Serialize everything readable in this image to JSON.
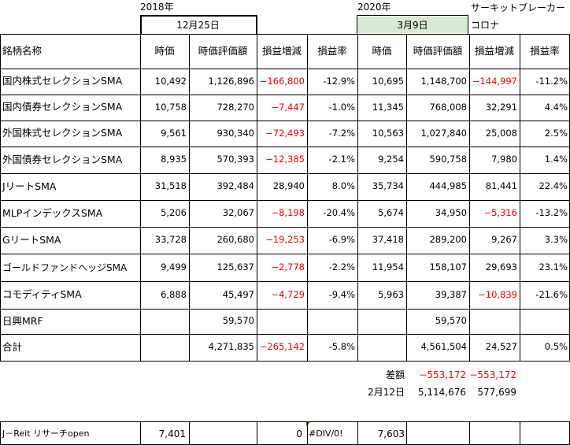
{
  "labels": {
    "year_2018": "2018年",
    "year_2020": "2020年",
    "circuit_breaker": "サーキットブレーカー",
    "corona": "コロナ",
    "date_dec25": "12月25日",
    "date_mar9": "3月9日"
  },
  "headers": [
    "銘柄名称",
    "時価",
    "時価評価額",
    "損益増減",
    "損益率",
    "時価",
    "時価評価額",
    "損益増減",
    "損益率"
  ],
  "rows": [
    {
      "name": "国内株式セレクションSMA",
      "p1": "10,492",
      "v1": "1,126,896",
      "g1": "−166,800",
      "r1": "-12.9%",
      "p2": "10,695",
      "v2": "1,148,700",
      "g2": "−144,997",
      "r2": "-11.2%"
    },
    {
      "name": "国内債券セレクションSMA",
      "p1": "10,758",
      "v1": "728,270",
      "g1": "−7,447",
      "r1": "-1.0%",
      "p2": "11,345",
      "v2": "768,008",
      "g2": "32,291",
      "r2": "4.4%"
    },
    {
      "name": "外国株式セレクションSMA",
      "p1": "9,561",
      "v1": "930,340",
      "g1": "−72,493",
      "r1": "-7.2%",
      "p2": "10,563",
      "v2": "1,027,840",
      "g2": "25,008",
      "r2": "2.5%"
    },
    {
      "name": "外国債券セレクションSMA",
      "p1": "8,935",
      "v1": "570,393",
      "g1": "−12,385",
      "r1": "-2.1%",
      "p2": "9,254",
      "v2": "590,758",
      "g2": "7,980",
      "r2": "1.4%"
    },
    {
      "name": "JリートSMA",
      "p1": "31,518",
      "v1": "392,484",
      "g1": "28,940",
      "r1": "8.0%",
      "p2": "35,734",
      "v2": "444,985",
      "g2": "81,441",
      "r2": "22.4%"
    },
    {
      "name": "MLPインデックスSMA",
      "p1": "5,206",
      "v1": "32,067",
      "g1": "−8,198",
      "r1": "-20.4%",
      "p2": "5,674",
      "v2": "34,950",
      "g2": "−5,316",
      "r2": "-13.2%"
    },
    {
      "name": "GリートSMA",
      "p1": "33,728",
      "v1": "260,680",
      "g1": "−19,253",
      "r1": "-6.9%",
      "p2": "37,418",
      "v2": "289,200",
      "g2": "9,267",
      "r2": "3.3%"
    },
    {
      "name": "ゴールドファンドヘッジSMA",
      "p1": "9,499",
      "v1": "125,637",
      "g1": "−2,778",
      "r1": "-2.2%",
      "p2": "11,954",
      "v2": "158,107",
      "g2": "29,693",
      "r2": "23.1%"
    },
    {
      "name": "コモディティSMA",
      "p1": "6,888",
      "v1": "45,497",
      "g1": "−4,729",
      "r1": "-9.4%",
      "p2": "5,963",
      "v2": "39,387",
      "g2": "−10,839",
      "r2": "-21.6%"
    },
    {
      "name": "日興MRF",
      "p1": "",
      "v1": "59,570",
      "g1": "",
      "r1": "",
      "p2": "",
      "v2": "59,570",
      "g2": "",
      "r2": ""
    },
    {
      "name": "合計",
      "p1": "",
      "v1": "4,271,835",
      "g1": "−265,142",
      "r1": "-5.8%",
      "p2": "",
      "v2": "4,561,504",
      "g2": "24,527",
      "r2": "0.5%"
    }
  ],
  "diff": {
    "label": "差額",
    "v2": "−553,172",
    "g2": "−553,172"
  },
  "feb12": {
    "label": "2月12日",
    "v2": "5,114,676",
    "g2": "577,699"
  },
  "reit": {
    "name": "J－Reit リサーチopen",
    "p1": "7,401",
    "g1": "0",
    "r1": "#DIV/0!",
    "p2": "7,603"
  }
}
